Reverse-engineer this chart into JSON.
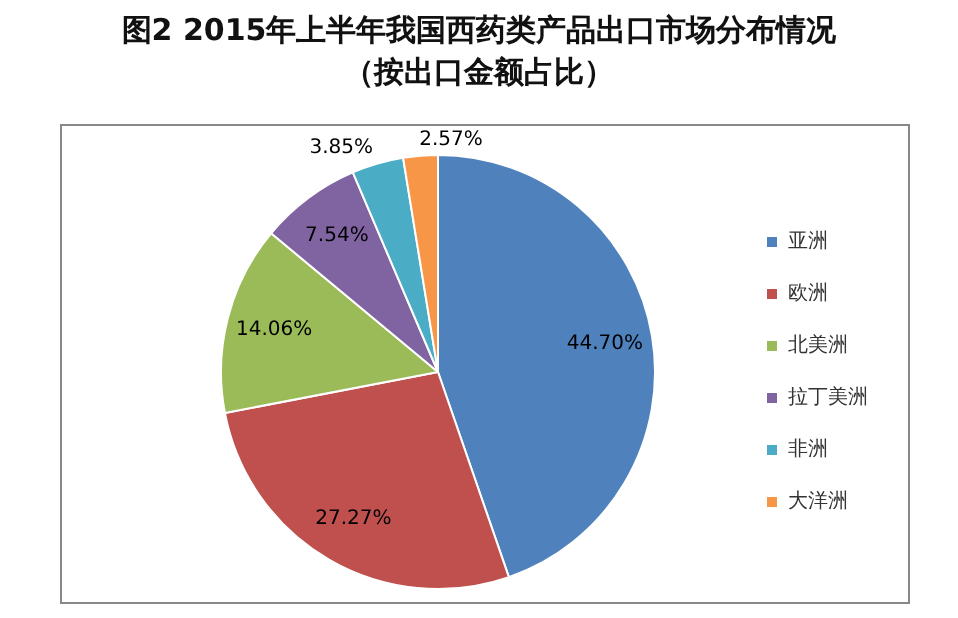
{
  "chart_data": {
    "type": "pie",
    "title": "图2 2015年上半年我国西药类产品出口市场分布情况",
    "subtitle": "（按出口金额占比）",
    "categories": [
      "亚洲",
      "欧洲",
      "北美洲",
      "拉丁美洲",
      "非洲",
      "大洋洲"
    ],
    "values": [
      44.7,
      27.27,
      14.06,
      7.54,
      3.85,
      2.57
    ],
    "colors": [
      "#4f81bd",
      "#c0504d",
      "#9bbb59",
      "#8064a2",
      "#4bacc6",
      "#f79646"
    ],
    "value_labels": [
      "44.70%",
      "27.27%",
      "14.06%",
      "7.54%",
      "3.85%",
      "2.57%"
    ],
    "legend": "right"
  }
}
